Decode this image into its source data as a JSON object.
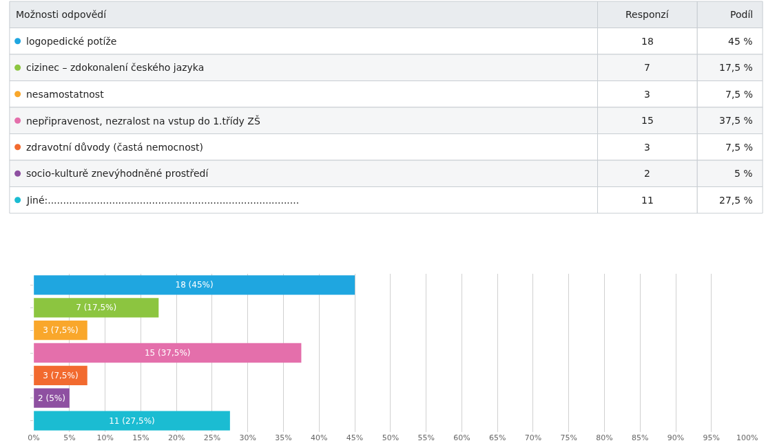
{
  "chart_data": {
    "type": "bar",
    "orientation": "horizontal",
    "categories": [
      null,
      null,
      null,
      null,
      null,
      null,
      null
    ],
    "values": [
      45,
      17.5,
      7.5,
      37.5,
      7.5,
      5,
      27.5
    ],
    "colors": [
      "#1fa6e0",
      "#8cc540",
      "#f9a72b",
      "#e46fab",
      "#f26a2f",
      "#8e50a1",
      "#1bbcd2"
    ],
    "value_labels": [
      "18 (45%)",
      "7 (17,5%)",
      "3 (7,5%)",
      "15 (37,5%)",
      "3 (7,5%)",
      "2 (5%)",
      "11 (27,5%)"
    ],
    "xlim": [
      0,
      100
    ],
    "xticks": [
      {
        "value": 0,
        "label": "0%"
      },
      {
        "value": 5,
        "label": "5%"
      },
      {
        "value": 10,
        "label": "10%"
      },
      {
        "value": 15,
        "label": "15%"
      },
      {
        "value": 20,
        "label": "20%"
      },
      {
        "value": 25,
        "label": "25%"
      },
      {
        "value": 30,
        "label": "30%"
      },
      {
        "value": 35,
        "label": "35%"
      },
      {
        "value": 40,
        "label": "40%"
      },
      {
        "value": 45,
        "label": "45%"
      },
      {
        "value": 50,
        "label": "50%"
      },
      {
        "value": 55,
        "label": "55%"
      },
      {
        "value": 60,
        "label": "60%"
      },
      {
        "value": 65,
        "label": "65%"
      },
      {
        "value": 70,
        "label": "70%"
      },
      {
        "value": 75,
        "label": "75%"
      },
      {
        "value": 80,
        "label": "80%"
      },
      {
        "value": 85,
        "label": "85%"
      },
      {
        "value": 90,
        "label": "90%"
      },
      {
        "value": 95,
        "label": "95%"
      },
      {
        "value": 100,
        "label": "100%"
      }
    ],
    "grid": "x",
    "tick_labels": "x",
    "annotations": [
      "Možnosti odpovědí",
      "Responzí",
      "Podíl",
      "logopedické potíže",
      "18",
      "45 %",
      "cizinec – zdokonalení českého jazyka",
      "7",
      "17,5 %",
      "nesamostatnost",
      "3",
      "7,5 %",
      "nepřipravenost, nezralost na vstup do 1.třídy ZŠ",
      "15",
      "37,5 %",
      "zdravotní důvody (častá nemocnost)",
      "3",
      "7,5 %",
      "socio-kulturě znevýhodněné prostředí",
      "2",
      "5 %",
      "Jiné:..................................................................................",
      "11",
      "27,5 %"
    ]
  }
}
